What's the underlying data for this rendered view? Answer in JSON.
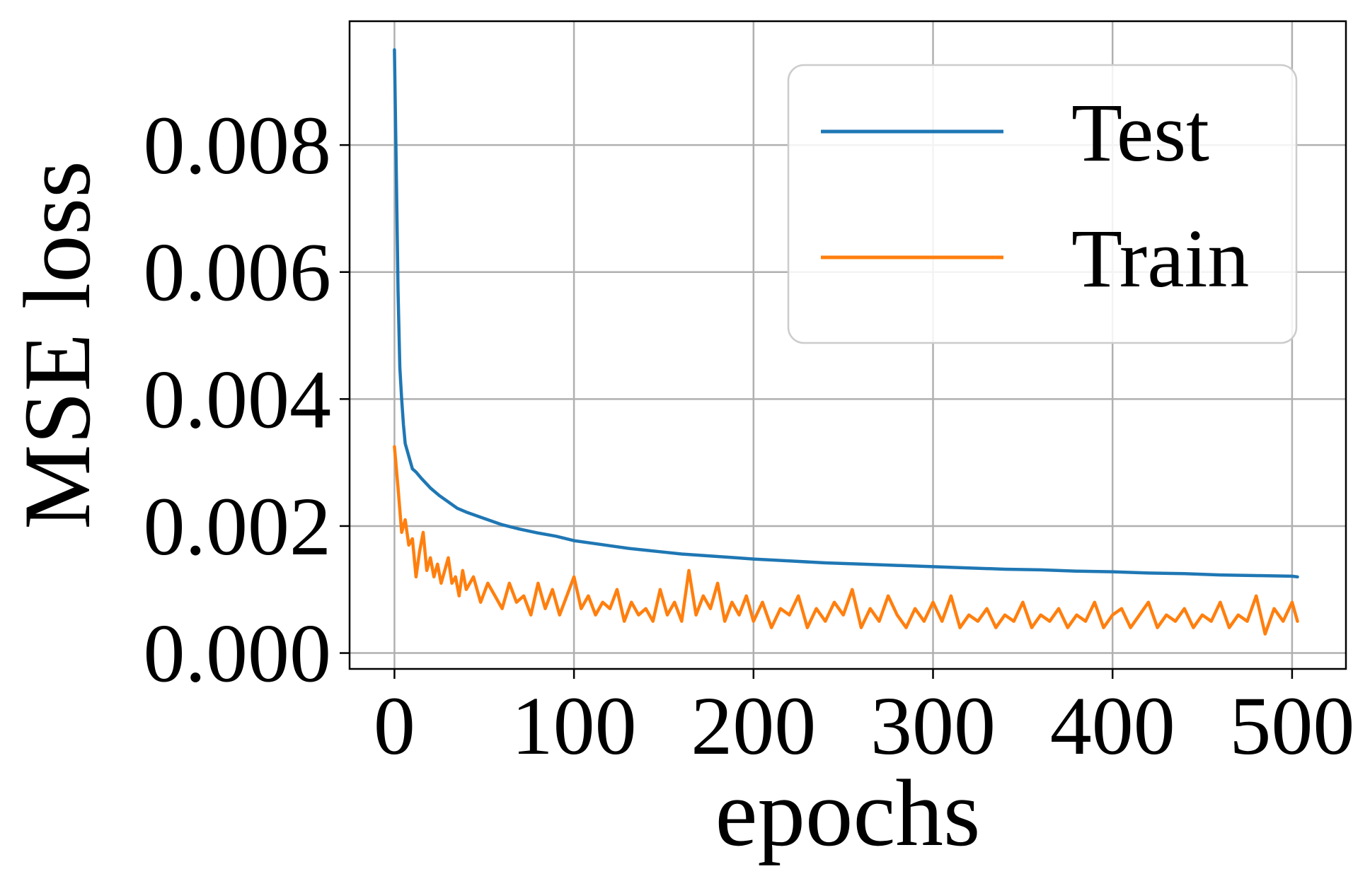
{
  "chart_data": {
    "type": "line",
    "xlabel": "epochs",
    "ylabel": "MSE loss",
    "xlim": [
      -25,
      530
    ],
    "ylim": [
      -0.00025,
      0.00995
    ],
    "xticks": [
      0,
      100,
      200,
      300,
      400,
      500
    ],
    "yticks": [
      0.0,
      0.002,
      0.004,
      0.006,
      0.008
    ],
    "xtick_labels": [
      "0",
      "100",
      "200",
      "300",
      "400",
      "500"
    ],
    "ytick_labels": [
      "0.000",
      "0.002",
      "0.004",
      "0.006",
      "0.008"
    ],
    "grid": true,
    "legend_position": "top-right",
    "series": [
      {
        "name": "Test",
        "color": "#1f77b4",
        "x": [
          0,
          1,
          2,
          3,
          4,
          5,
          6,
          8,
          10,
          12,
          15,
          20,
          25,
          30,
          35,
          40,
          50,
          60,
          70,
          80,
          90,
          100,
          110,
          120,
          130,
          140,
          150,
          160,
          170,
          180,
          190,
          200,
          220,
          240,
          260,
          280,
          300,
          320,
          340,
          360,
          380,
          400,
          420,
          440,
          460,
          480,
          500,
          503
        ],
        "y": [
          0.0095,
          0.0076,
          0.0057,
          0.0045,
          0.004,
          0.0036,
          0.0033,
          0.0031,
          0.0029,
          0.00285,
          0.00275,
          0.0026,
          0.00248,
          0.00238,
          0.00228,
          0.00222,
          0.00212,
          0.00202,
          0.00195,
          0.00189,
          0.00184,
          0.00177,
          0.00173,
          0.00169,
          0.00165,
          0.00162,
          0.00159,
          0.00156,
          0.00154,
          0.00152,
          0.0015,
          0.00148,
          0.00145,
          0.00142,
          0.0014,
          0.00138,
          0.00136,
          0.00134,
          0.00132,
          0.00131,
          0.00129,
          0.00128,
          0.00126,
          0.00125,
          0.00123,
          0.00122,
          0.00121,
          0.0012
        ]
      },
      {
        "name": "Train",
        "color": "#ff7f0e",
        "x": [
          0,
          2,
          4,
          6,
          8,
          10,
          12,
          14,
          16,
          18,
          20,
          22,
          24,
          26,
          28,
          30,
          32,
          34,
          36,
          38,
          40,
          44,
          48,
          52,
          56,
          60,
          64,
          68,
          72,
          76,
          80,
          84,
          88,
          92,
          96,
          100,
          104,
          108,
          112,
          116,
          120,
          124,
          128,
          132,
          136,
          140,
          144,
          148,
          152,
          156,
          160,
          164,
          168,
          172,
          176,
          180,
          184,
          188,
          192,
          196,
          200,
          205,
          210,
          215,
          220,
          225,
          230,
          235,
          240,
          245,
          250,
          255,
          260,
          265,
          270,
          275,
          280,
          285,
          290,
          295,
          300,
          305,
          310,
          315,
          320,
          325,
          330,
          335,
          340,
          345,
          350,
          355,
          360,
          365,
          370,
          375,
          380,
          385,
          390,
          395,
          400,
          405,
          410,
          415,
          420,
          425,
          430,
          435,
          440,
          445,
          450,
          455,
          460,
          465,
          470,
          475,
          480,
          485,
          490,
          495,
          500,
          503
        ],
        "y": [
          0.00325,
          0.0026,
          0.0019,
          0.0021,
          0.0017,
          0.0018,
          0.0012,
          0.0016,
          0.0019,
          0.0013,
          0.0015,
          0.0012,
          0.0014,
          0.0011,
          0.0013,
          0.0015,
          0.0011,
          0.0012,
          0.0009,
          0.0013,
          0.001,
          0.0012,
          0.0008,
          0.0011,
          0.0009,
          0.0007,
          0.0011,
          0.0008,
          0.0009,
          0.0006,
          0.0011,
          0.0007,
          0.001,
          0.0006,
          0.0009,
          0.0012,
          0.0007,
          0.0009,
          0.0006,
          0.0008,
          0.0007,
          0.001,
          0.0005,
          0.0008,
          0.0006,
          0.0007,
          0.0005,
          0.001,
          0.0006,
          0.0008,
          0.0005,
          0.0013,
          0.0006,
          0.0009,
          0.0007,
          0.0011,
          0.0005,
          0.0008,
          0.0006,
          0.0009,
          0.0005,
          0.0008,
          0.0004,
          0.0007,
          0.0006,
          0.0009,
          0.0004,
          0.0007,
          0.0005,
          0.0008,
          0.0006,
          0.001,
          0.0004,
          0.0007,
          0.0005,
          0.0009,
          0.0006,
          0.0004,
          0.0007,
          0.0005,
          0.0008,
          0.0005,
          0.0009,
          0.0004,
          0.0006,
          0.0005,
          0.0007,
          0.0004,
          0.0006,
          0.0005,
          0.0008,
          0.0004,
          0.0006,
          0.0005,
          0.0007,
          0.0004,
          0.0006,
          0.0005,
          0.0008,
          0.0004,
          0.0006,
          0.0007,
          0.0004,
          0.0006,
          0.0008,
          0.0004,
          0.0006,
          0.0005,
          0.0007,
          0.0004,
          0.0006,
          0.0005,
          0.0008,
          0.0004,
          0.0006,
          0.0005,
          0.0009,
          0.0003,
          0.0007,
          0.0005,
          0.0008,
          0.0005
        ]
      }
    ]
  }
}
